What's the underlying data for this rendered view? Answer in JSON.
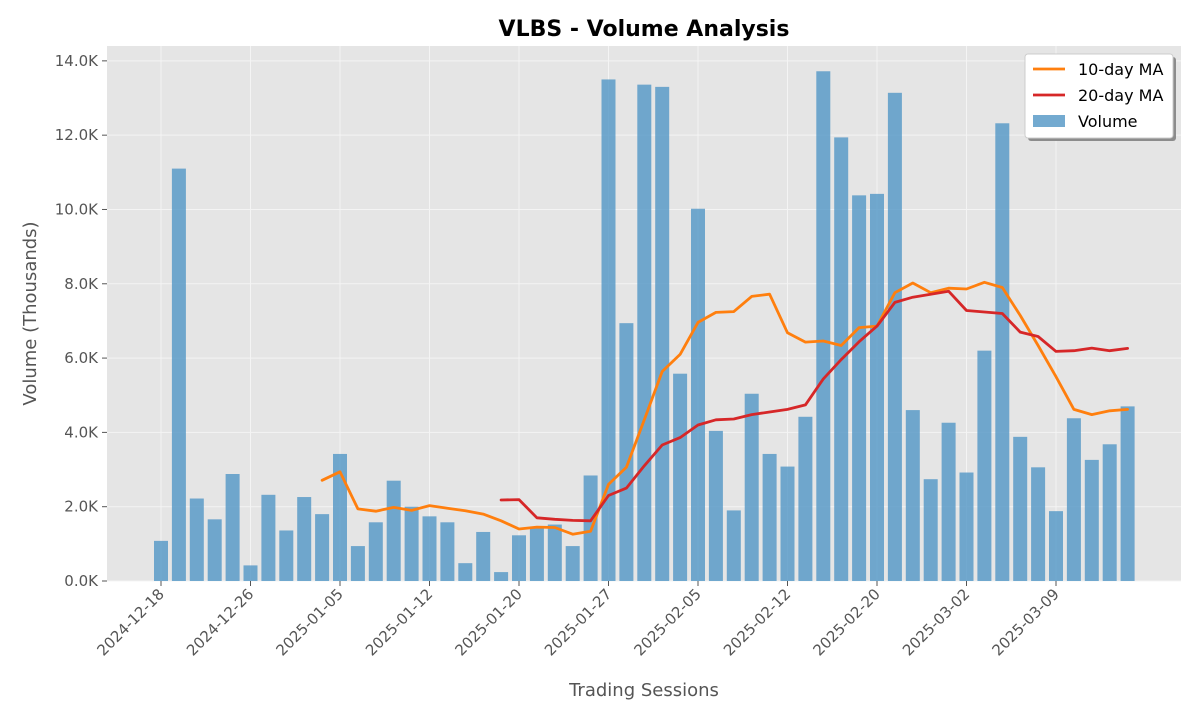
{
  "chart_data": {
    "type": "bar",
    "title": "VLBS - Volume Analysis",
    "xlabel": "Trading Sessions",
    "ylabel": "Volume (Thousands)",
    "ylim": [
      0,
      14400
    ],
    "y_ticks": [
      0,
      2000,
      4000,
      6000,
      8000,
      10000,
      12000,
      14000
    ],
    "y_tick_labels": [
      "0.0K",
      "2.0K",
      "4.0K",
      "6.0K",
      "8.0K",
      "10.0K",
      "12.0K",
      "14.0K"
    ],
    "x_tick_labels": [
      {
        "index": 0,
        "label": "2024-12-18"
      },
      {
        "index": 5,
        "label": "2024-12-26"
      },
      {
        "index": 10,
        "label": "2025-01-05"
      },
      {
        "index": 15,
        "label": "2025-01-12"
      },
      {
        "index": 20,
        "label": "2025-01-20"
      },
      {
        "index": 25,
        "label": "2025-01-27"
      },
      {
        "index": 30,
        "label": "2025-02-05"
      },
      {
        "index": 35,
        "label": "2025-02-12"
      },
      {
        "index": 40,
        "label": "2025-02-20"
      },
      {
        "index": 45,
        "label": "2025-03-02"
      },
      {
        "index": 50,
        "label": "2025-03-09"
      }
    ],
    "grid": true,
    "legend_position": "top-right",
    "series": [
      {
        "name": "Volume",
        "kind": "bar",
        "color": "#5b9bc8",
        "values": [
          1080,
          11100,
          2220,
          1660,
          2880,
          420,
          2320,
          1360,
          2260,
          1800,
          3420,
          940,
          1580,
          2700,
          2000,
          1740,
          1580,
          480,
          1320,
          240,
          1230,
          1420,
          1520,
          940,
          2840,
          13500,
          6940,
          13360,
          13300,
          5580,
          10020,
          4040,
          1900,
          5040,
          3420,
          3080,
          4420,
          13720,
          11940,
          10380,
          10420,
          13140,
          4600,
          2740,
          4260,
          2920,
          6200,
          12320,
          3880,
          3060,
          1880,
          4380,
          3260,
          3680,
          4700
        ]
      },
      {
        "name": "10-day MA",
        "kind": "line",
        "color": "#ff7f0e",
        "values": [
          null,
          null,
          null,
          null,
          null,
          null,
          null,
          null,
          null,
          2710,
          2940,
          1940,
          1880,
          1980,
          1900,
          2030,
          1960,
          1890,
          1800,
          1620,
          1400,
          1450,
          1440,
          1260,
          1340,
          2600,
          3060,
          4340,
          5640,
          6100,
          6960,
          7230,
          7250,
          7660,
          7720,
          6680,
          6430,
          6460,
          6340,
          6820,
          6860,
          7760,
          8020,
          7760,
          7880,
          7860,
          8040,
          7900,
          7150,
          6340,
          5500,
          4620,
          4480,
          4580,
          4620
        ]
      },
      {
        "name": "20-day MA",
        "kind": "line",
        "color": "#d62728",
        "values": [
          null,
          null,
          null,
          null,
          null,
          null,
          null,
          null,
          null,
          null,
          null,
          null,
          null,
          null,
          null,
          null,
          null,
          null,
          null,
          2180,
          2190,
          1700,
          1660,
          1630,
          1620,
          2300,
          2500,
          3100,
          3660,
          3860,
          4200,
          4340,
          4360,
          4480,
          4550,
          4620,
          4740,
          5440,
          5960,
          6440,
          6860,
          7500,
          7640,
          7720,
          7800,
          7280,
          7240,
          7200,
          6700,
          6580,
          6180,
          6200,
          6270,
          6200,
          6260
        ]
      }
    ]
  }
}
